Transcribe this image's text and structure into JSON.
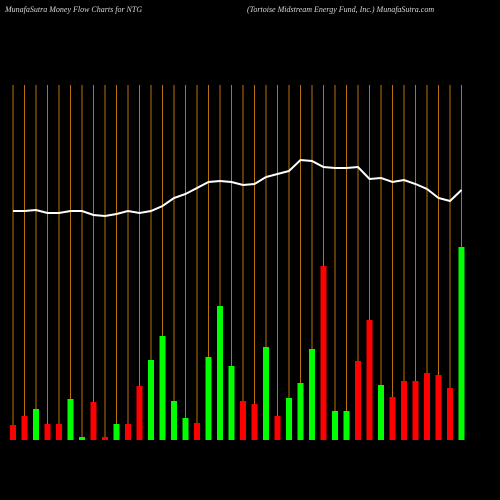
{
  "chart_data": {
    "type": "bar",
    "title": "MunafaSutra  Money Flow  Charts for NTG",
    "subtitle": "(Tortoise   Midstream Energy Fund, Inc.) MunafaSutra.com",
    "categories": [
      null,
      null,
      null,
      null,
      null,
      null,
      null,
      null,
      null,
      null,
      null,
      null,
      null,
      null,
      null,
      null,
      null,
      null,
      null,
      null,
      null,
      null,
      null,
      null,
      null,
      null,
      null,
      null,
      null,
      null,
      null,
      null,
      null,
      null,
      null,
      null,
      null,
      null,
      null,
      null
    ],
    "values": [
      15,
      24,
      31,
      16,
      16,
      41,
      3,
      38,
      3,
      16,
      16,
      54,
      80,
      104,
      39,
      22,
      17,
      83,
      134,
      74,
      39,
      36,
      93,
      24,
      42,
      57,
      91,
      174,
      29,
      29,
      79,
      120,
      55,
      43,
      59,
      59,
      67,
      65,
      52,
      193
    ],
    "colors": [
      "#ff0000",
      "#ff0000",
      "#00ff00",
      "#ff0000",
      "#ff0000",
      "#00ff00",
      "#00ff00",
      "#ff0000",
      "#ff0000",
      "#00ff00",
      "#ff0000",
      "#ff0000",
      "#00ff00",
      "#00ff00",
      "#00ff00",
      "#00ff00",
      "#ff0000",
      "#00ff00",
      "#00ff00",
      "#00ff00",
      "#ff0000",
      "#ff0000",
      "#00ff00",
      "#ff0000",
      "#00ff00",
      "#00ff00",
      "#00ff00",
      "#ff0000",
      "#00ff00",
      "#00ff00",
      "#ff0000",
      "#ff0000",
      "#00ff00",
      "#ff0000",
      "#ff0000",
      "#ff0000",
      "#ff0000",
      "#ff0000",
      "#ff0000",
      "#00ff00"
    ],
    "line": {
      "color": "#ffffff",
      "values": [
        229,
        229,
        230,
        227,
        227,
        229,
        229,
        225,
        224,
        226,
        229,
        227,
        229,
        234,
        242,
        246,
        252,
        258,
        259,
        258,
        255,
        256,
        263,
        266,
        269,
        280,
        279,
        273,
        272,
        272,
        273,
        261,
        262,
        258,
        260,
        256,
        251,
        242,
        239,
        250
      ]
    },
    "ylim": [
      0,
      355
    ],
    "grid": true,
    "grid_color": "#b8700a"
  }
}
